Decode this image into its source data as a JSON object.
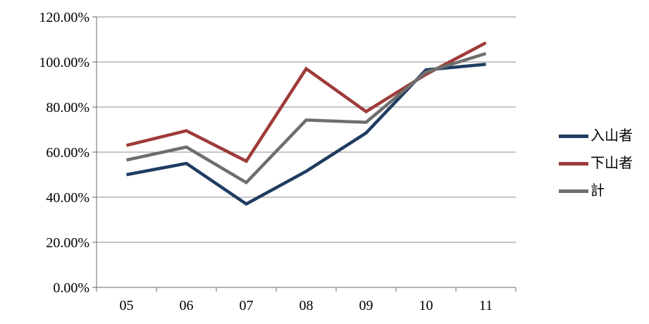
{
  "chart_data": {
    "type": "line",
    "title": "",
    "xlabel": "",
    "ylabel": "",
    "categories": [
      "05",
      "06",
      "07",
      "08",
      "09",
      "10",
      "11"
    ],
    "series": [
      {
        "name": "入山者",
        "color": "#1F3C61",
        "values": [
          50.0,
          55.0,
          37.0,
          51.5,
          68.5,
          96.5,
          99.0
        ]
      },
      {
        "name": "下山者",
        "color": "#9E3B39",
        "values": [
          63.0,
          69.5,
          56.0,
          97.0,
          78.0,
          94.5,
          108.5
        ]
      },
      {
        "name": "計",
        "color": "#6E6E6E",
        "values": [
          56.5,
          62.25,
          46.5,
          74.25,
          73.25,
          95.5,
          103.75
        ]
      }
    ],
    "ylim": [
      0,
      120
    ],
    "y_tick_step": 20,
    "y_tick_labels": [
      "0.00%",
      "20.00%",
      "40.00%",
      "60.00%",
      "80.00%",
      "100.00%",
      "120.00%"
    ],
    "grid": true,
    "legend_position": "right",
    "colors": {
      "background": "#ffffff",
      "gridline": "#8C8C8C",
      "axis": "#6A6A6A",
      "text": "#000000"
    }
  }
}
